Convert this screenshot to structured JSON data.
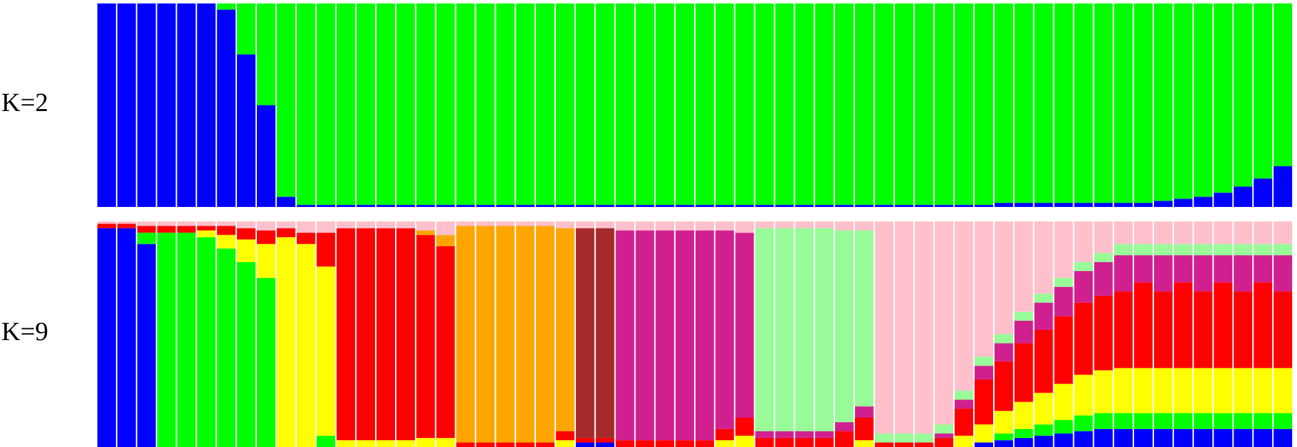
{
  "chart_data": [
    {
      "type": "bar",
      "stacked": true,
      "title": "K=2",
      "ylim": [
        0,
        1
      ],
      "series": [
        {
          "color": "#0000ff",
          "values": [
            1,
            1,
            1,
            1,
            1,
            1,
            0.97,
            0.75,
            0.5,
            0.05,
            0.01,
            0.01,
            0.01,
            0.01,
            0.01,
            0.01,
            0.01,
            0.01,
            0.01,
            0.01,
            0.01,
            0.01,
            0.01,
            0.01,
            0.01,
            0.01,
            0.01,
            0.01,
            0.01,
            0.01,
            0.01,
            0.01,
            0.01,
            0.01,
            0.01,
            0.01,
            0.01,
            0.01,
            0.01,
            0.01,
            0.01,
            0.01,
            0.01,
            0.01,
            0.01,
            0.02,
            0.02,
            0.02,
            0.02,
            0.02,
            0.02,
            0.02,
            0.02,
            0.03,
            0.04,
            0.05,
            0.07,
            0.1,
            0.14,
            0.2
          ]
        },
        {
          "color": "#00ff00",
          "values": [
            0,
            0,
            0,
            0,
            0,
            0,
            0.03,
            0.25,
            0.5,
            0.95,
            0.99,
            0.99,
            0.99,
            0.99,
            0.99,
            0.99,
            0.99,
            0.99,
            0.99,
            0.99,
            0.99,
            0.99,
            0.99,
            0.99,
            0.99,
            0.99,
            0.99,
            0.99,
            0.99,
            0.99,
            0.99,
            0.99,
            0.99,
            0.99,
            0.99,
            0.99,
            0.99,
            0.99,
            0.99,
            0.99,
            0.99,
            0.99,
            0.99,
            0.99,
            0.99,
            0.98,
            0.98,
            0.98,
            0.98,
            0.98,
            0.98,
            0.98,
            0.98,
            0.97,
            0.96,
            0.95,
            0.93,
            0.9,
            0.86,
            0.8
          ]
        }
      ]
    },
    {
      "type": "bar",
      "stacked": true,
      "title": "K=9",
      "ylim": [
        0,
        1
      ],
      "series": [
        {
          "color": "#0000ff",
          "values": [
            0.97,
            0.97,
            0.9,
            0,
            0,
            0,
            0,
            0,
            0,
            0,
            0,
            0,
            0,
            0,
            0,
            0,
            0,
            0,
            0,
            0,
            0,
            0,
            0,
            0,
            0.02,
            0.02,
            0,
            0,
            0,
            0,
            0,
            0,
            0,
            0,
            0,
            0,
            0,
            0,
            0,
            0,
            0,
            0,
            0,
            0,
            0.02,
            0.03,
            0.04,
            0.05,
            0.06,
            0.07,
            0.08,
            0.08,
            0.08,
            0.08,
            0.08,
            0.08,
            0.08,
            0.08,
            0.08,
            0.08
          ]
        },
        {
          "color": "#00ff00",
          "values": [
            0,
            0,
            0.05,
            0.95,
            0.95,
            0.93,
            0.88,
            0.82,
            0.75,
            0,
            0,
            0.05,
            0,
            0,
            0,
            0,
            0,
            0,
            0,
            0,
            0,
            0,
            0,
            0,
            0,
            0,
            0,
            0,
            0,
            0,
            0,
            0,
            0,
            0,
            0,
            0,
            0,
            0,
            0,
            0,
            0,
            0,
            0,
            0,
            0,
            0.03,
            0.04,
            0.05,
            0.06,
            0.07,
            0.07,
            0.07,
            0.07,
            0.07,
            0.07,
            0.07,
            0.07,
            0.07,
            0.07,
            0.07
          ]
        },
        {
          "color": "#ffff00",
          "values": [
            0,
            0,
            0,
            0,
            0,
            0.03,
            0.06,
            0.1,
            0.15,
            0.93,
            0.9,
            0.75,
            0.03,
            0.03,
            0.03,
            0.03,
            0.04,
            0.04,
            0,
            0,
            0,
            0,
            0,
            0.03,
            0,
            0,
            0,
            0,
            0,
            0,
            0,
            0.03,
            0.05,
            0,
            0,
            0,
            0,
            0,
            0.03,
            0,
            0,
            0,
            0,
            0.05,
            0.08,
            0.1,
            0.12,
            0.14,
            0.16,
            0.18,
            0.19,
            0.2,
            0.2,
            0.2,
            0.2,
            0.2,
            0.2,
            0.2,
            0.2,
            0.2
          ]
        },
        {
          "color": "#ff0000",
          "values": [
            0.02,
            0.02,
            0.03,
            0.03,
            0.03,
            0.02,
            0.04,
            0.05,
            0.06,
            0.04,
            0.05,
            0.15,
            0.94,
            0.94,
            0.94,
            0.94,
            0.9,
            0.85,
            0.02,
            0.02,
            0.02,
            0.02,
            0.02,
            0.04,
            0.02,
            0.02,
            0.03,
            0.03,
            0.03,
            0.03,
            0.03,
            0.05,
            0.08,
            0.04,
            0.04,
            0.04,
            0.04,
            0.07,
            0.1,
            0.02,
            0.02,
            0.02,
            0.04,
            0.12,
            0.2,
            0.22,
            0.26,
            0.28,
            0.3,
            0.32,
            0.33,
            0.34,
            0.38,
            0.34,
            0.38,
            0.34,
            0.38,
            0.34,
            0.38,
            0.34
          ]
        },
        {
          "color": "#ffa500",
          "values": [
            0,
            0,
            0,
            0,
            0,
            0,
            0,
            0,
            0,
            0,
            0,
            0,
            0,
            0,
            0,
            0,
            0.02,
            0.05,
            0.96,
            0.96,
            0.96,
            0.96,
            0.96,
            0.9,
            0,
            0,
            0,
            0,
            0,
            0,
            0,
            0,
            0,
            0,
            0,
            0,
            0,
            0,
            0,
            0,
            0,
            0,
            0,
            0,
            0,
            0,
            0,
            0,
            0,
            0,
            0,
            0,
            0,
            0,
            0,
            0,
            0,
            0,
            0,
            0
          ]
        },
        {
          "color": "#a52a2a",
          "values": [
            0,
            0,
            0,
            0,
            0,
            0,
            0,
            0,
            0,
            0,
            0,
            0,
            0,
            0,
            0,
            0,
            0,
            0,
            0,
            0,
            0,
            0,
            0,
            0,
            0.93,
            0.93,
            0,
            0,
            0,
            0,
            0,
            0,
            0,
            0,
            0,
            0,
            0,
            0,
            0,
            0,
            0,
            0,
            0,
            0,
            0,
            0,
            0,
            0,
            0,
            0,
            0,
            0,
            0,
            0,
            0,
            0,
            0,
            0,
            0,
            0
          ]
        },
        {
          "color": "#d02090",
          "values": [
            0,
            0,
            0,
            0,
            0,
            0,
            0,
            0,
            0,
            0,
            0,
            0,
            0,
            0,
            0,
            0,
            0,
            0,
            0,
            0,
            0,
            0,
            0,
            0,
            0,
            0,
            0.93,
            0.93,
            0.93,
            0.93,
            0.93,
            0.88,
            0.82,
            0.03,
            0.03,
            0.03,
            0.03,
            0.04,
            0.05,
            0,
            0,
            0,
            0.02,
            0.04,
            0.06,
            0.08,
            0.1,
            0.12,
            0.13,
            0.14,
            0.15,
            0.16,
            0.12,
            0.16,
            0.12,
            0.16,
            0.12,
            0.16,
            0.12,
            0.16
          ]
        },
        {
          "color": "#98fb98",
          "values": [
            0,
            0,
            0,
            0,
            0,
            0,
            0,
            0,
            0,
            0,
            0,
            0,
            0,
            0,
            0,
            0,
            0,
            0,
            0,
            0,
            0,
            0,
            0,
            0,
            0,
            0,
            0,
            0,
            0,
            0,
            0,
            0,
            0,
            0.9,
            0.9,
            0.9,
            0.9,
            0.85,
            0.78,
            0.04,
            0.04,
            0.04,
            0.04,
            0.04,
            0.04,
            0.04,
            0.04,
            0.04,
            0.04,
            0.04,
            0.04,
            0.05,
            0.05,
            0.05,
            0.05,
            0.05,
            0.05,
            0.05,
            0.05,
            0.05
          ]
        },
        {
          "color": "#ffc0cb",
          "values": [
            0.01,
            0.01,
            0.02,
            0.02,
            0.02,
            0.02,
            0.02,
            0.03,
            0.04,
            0.03,
            0.05,
            0.05,
            0.03,
            0.03,
            0.03,
            0.03,
            0.04,
            0.06,
            0.02,
            0.02,
            0.02,
            0.02,
            0.02,
            0.03,
            0.03,
            0.03,
            0.04,
            0.04,
            0.04,
            0.04,
            0.04,
            0.04,
            0.05,
            0.03,
            0.03,
            0.03,
            0.03,
            0.04,
            0.04,
            0.94,
            0.94,
            0.94,
            0.9,
            0.75,
            0.6,
            0.5,
            0.4,
            0.32,
            0.25,
            0.18,
            0.14,
            0.1,
            0.1,
            0.1,
            0.1,
            0.1,
            0.1,
            0.1,
            0.1,
            0.1
          ]
        }
      ]
    }
  ]
}
